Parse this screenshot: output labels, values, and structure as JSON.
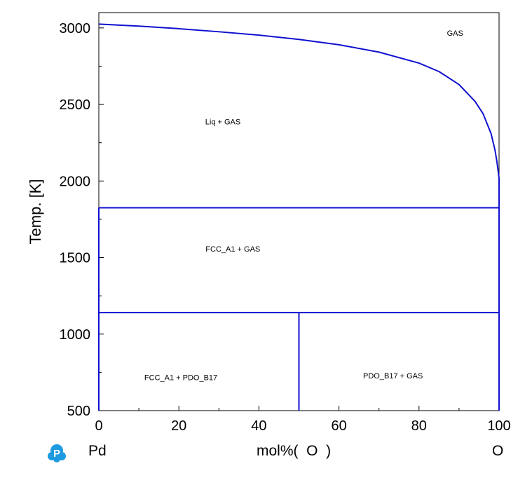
{
  "chart_data": {
    "type": "line",
    "title": "",
    "xlabel": "mol%( O )",
    "ylabel": "Temp. [K]",
    "xlim": [
      0,
      100
    ],
    "ylim": [
      500,
      3100
    ],
    "x_ticks": [
      0,
      20,
      40,
      60,
      80,
      100
    ],
    "y_ticks": [
      500,
      1000,
      1500,
      2000,
      2500,
      3000
    ],
    "x_minor_step": 10,
    "y_minor_step": 250,
    "grid": false,
    "line_color": "#1010d0",
    "series": [
      {
        "values": [
          [
            0,
            3025
          ],
          [
            10,
            3012
          ],
          [
            20,
            2995
          ],
          [
            30,
            2975
          ],
          [
            40,
            2953
          ],
          [
            50,
            2925
          ],
          [
            60,
            2890
          ],
          [
            70,
            2842
          ],
          [
            80,
            2770
          ],
          [
            85,
            2715
          ],
          [
            90,
            2630
          ],
          [
            94,
            2520
          ],
          [
            96,
            2440
          ],
          [
            98,
            2310
          ],
          [
            99,
            2200
          ],
          [
            99.5,
            2120
          ],
          [
            100,
            2020
          ]
        ]
      },
      {
        "values": [
          [
            0,
            1825
          ],
          [
            100,
            1825
          ]
        ]
      },
      {
        "values": [
          [
            0,
            1140
          ],
          [
            100,
            1140
          ]
        ]
      },
      {
        "values": [
          [
            50,
            500
          ],
          [
            50,
            1140
          ]
        ]
      },
      {
        "values": [
          [
            100,
            500
          ],
          [
            100,
            2020
          ]
        ]
      },
      {
        "values": [
          [
            0,
            500
          ],
          [
            0,
            1825
          ]
        ]
      }
    ],
    "annotations": [
      {
        "text": "GAS",
        "x": 89,
        "y": 2950
      },
      {
        "text": "Liq + GAS",
        "x": 31,
        "y": 2370
      },
      {
        "text": "FCC_A1 + GAS",
        "x": 33.5,
        "y": 1540
      },
      {
        "text": "FCC_A1 + PDO_B17",
        "x": 20.5,
        "y": 700
      },
      {
        "text": "PDO_B17 + GAS",
        "x": 73.5,
        "y": 710
      }
    ]
  },
  "footer": {
    "left_element": "Pd",
    "axis_label": "mol%(  O  )",
    "right_element": "O",
    "logo_icon": "pandat-logo-icon",
    "logo_color": "#1e9be0"
  }
}
